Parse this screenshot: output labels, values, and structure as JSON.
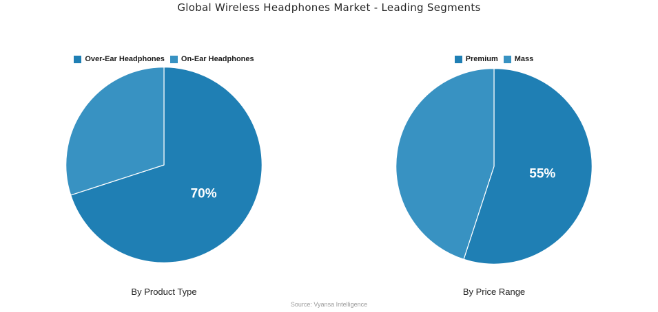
{
  "title": "Global Wireless Headphones Market - Leading Segments",
  "source": "Source: Vyansa Intelligence",
  "colors": {
    "primary": "#1F7FB4",
    "secondary": "#3892C2",
    "slice_label": "#FFFFFF",
    "slice_divider": "#FFFFFF"
  },
  "chart_data": [
    {
      "type": "pie",
      "caption": "By Product Type",
      "legend_position": "top-center",
      "start_angle": "top",
      "direction": "clockwise",
      "slices": [
        {
          "label": "Over-Ear Headphones",
          "value": 70,
          "color": "#1F7FB4",
          "data_label": "70%"
        },
        {
          "label": "On-Ear Headphones",
          "value": 30,
          "color": "#3892C2",
          "data_label": ""
        }
      ]
    },
    {
      "type": "pie",
      "caption": "By Price Range",
      "legend_position": "top-center",
      "start_angle": "top",
      "direction": "clockwise",
      "slices": [
        {
          "label": "Premium",
          "value": 55,
          "color": "#1F7FB4",
          "data_label": "55%"
        },
        {
          "label": "Mass",
          "value": 45,
          "color": "#3892C2",
          "data_label": ""
        }
      ]
    }
  ]
}
